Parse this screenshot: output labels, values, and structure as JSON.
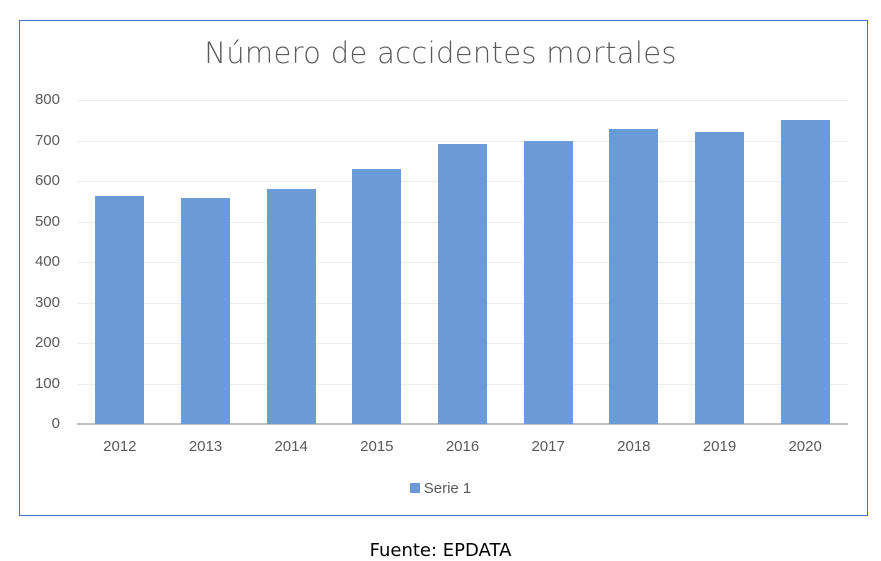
{
  "chart_data": {
    "type": "bar",
    "title": "Número de accidentes mortales",
    "categories": [
      "2012",
      "2013",
      "2014",
      "2015",
      "2016",
      "2017",
      "2018",
      "2019",
      "2020"
    ],
    "series": [
      {
        "name": "Serie 1",
        "color": "#6a9bd6",
        "values": [
          563,
          558,
          580,
          629,
          692,
          699,
          729,
          721,
          751
        ]
      }
    ],
    "xlabel": "",
    "ylabel": "",
    "ylim": [
      0,
      800
    ],
    "yticks": [
      "0",
      "100",
      "200",
      "300",
      "400",
      "500",
      "600",
      "700",
      "800"
    ],
    "grid": true,
    "legend_position": "bottom"
  },
  "source": "Fuente: EPDATA",
  "colors": {
    "bar": "#6a9bd6",
    "frame": "#4472c4",
    "text": "#595959"
  }
}
